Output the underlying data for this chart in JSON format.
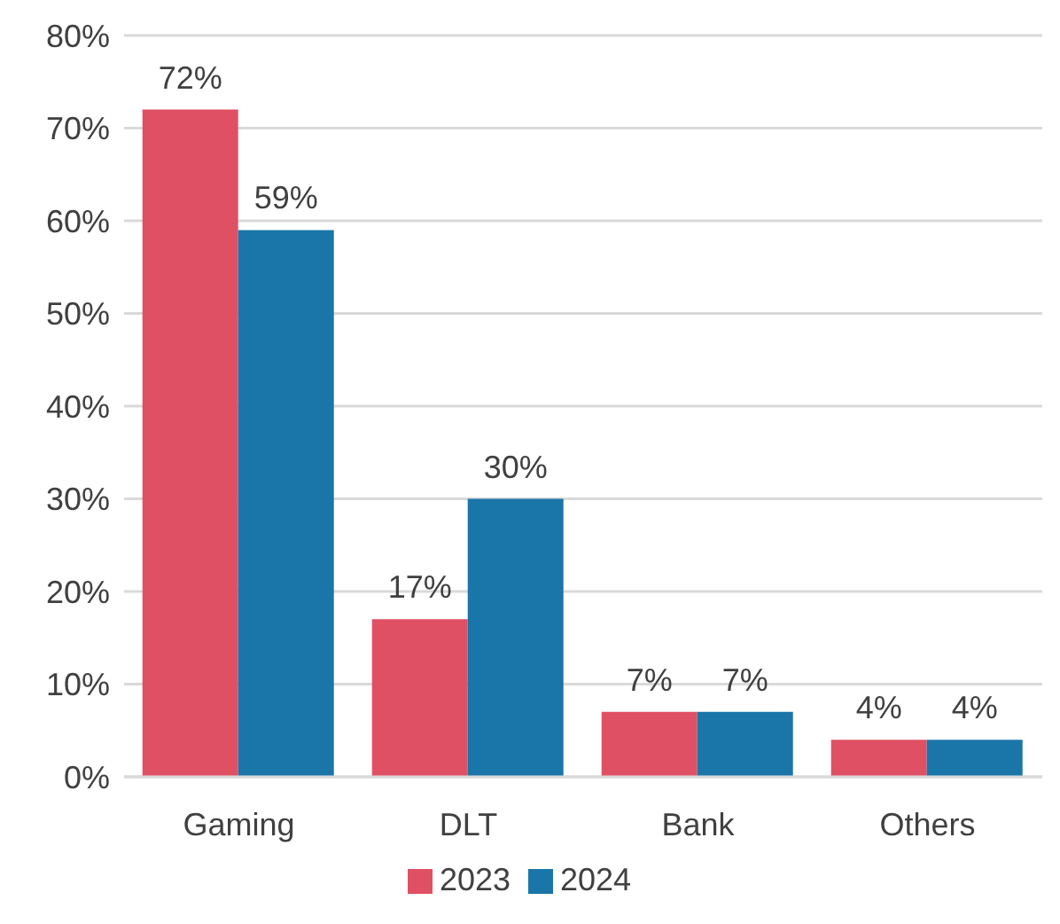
{
  "chart_data": {
    "type": "bar",
    "categories": [
      "Gaming",
      "DLT",
      "Bank",
      "Others"
    ],
    "series": [
      {
        "name": "2023",
        "color": "#e05064",
        "values": [
          72,
          17,
          7,
          4
        ],
        "value_labels": [
          "72%",
          "17%",
          "7%",
          "4%"
        ]
      },
      {
        "name": "2024",
        "color": "#1a76a8",
        "values": [
          59,
          30,
          7,
          4
        ],
        "value_labels": [
          "59%",
          "30%",
          "7%",
          "4%"
        ]
      }
    ],
    "ylim": [
      0,
      80
    ],
    "yticks": [
      {
        "value": 0,
        "label": "0%"
      },
      {
        "value": 10,
        "label": "10%"
      },
      {
        "value": 20,
        "label": "20%"
      },
      {
        "value": 30,
        "label": "30%"
      },
      {
        "value": 40,
        "label": "40%"
      },
      {
        "value": 50,
        "label": "50%"
      },
      {
        "value": 60,
        "label": "60%"
      },
      {
        "value": 70,
        "label": "70%"
      },
      {
        "value": 80,
        "label": "80%"
      }
    ],
    "grid": "y",
    "legend": "bottom"
  }
}
